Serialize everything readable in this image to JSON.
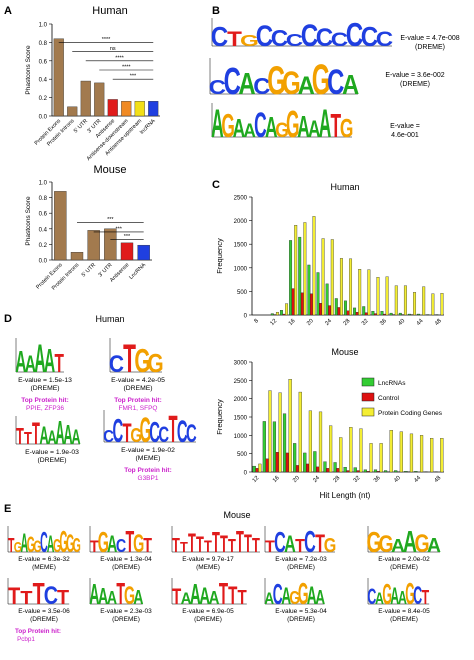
{
  "panel_labels": {
    "a": "A",
    "b": "B",
    "c": "C",
    "d": "D",
    "e": "E"
  },
  "colors": {
    "tan": "#a27a4e",
    "red": "#e01b1b",
    "orange": "#f08a24",
    "yellow": "#f2df17",
    "green": "#3cc43c",
    "blue": "#1f3fe0",
    "magenta": "#cc22cc",
    "lnc": "#33cc33",
    "control": "#dd1111",
    "pc": "#f4ee33"
  },
  "panelA": {
    "ylabel": "Phastcons Score",
    "human": {
      "title": "Human",
      "yticks": [
        "0.0",
        "0.2",
        "0.4",
        "0.6",
        "0.8",
        "1.0"
      ],
      "ylim": [
        0,
        1.0
      ],
      "categories": [
        "Protein Exons",
        "Protein Introns",
        "5' UTR",
        "3' UTR",
        "Antisense",
        "Antisense-downstream",
        "Antisense-upstream",
        "lncRNA"
      ],
      "values": [
        0.84,
        0.1,
        0.38,
        0.36,
        0.18,
        0.16,
        0.16,
        0.16
      ],
      "bar_colors": [
        "#a27a4e",
        "#a27a4e",
        "#a27a4e",
        "#a27a4e",
        "#e01b1b",
        "#f08a24",
        "#f2df17",
        "#1f3fe0"
      ],
      "sig": [
        "****",
        "ns",
        "****",
        "****",
        "***"
      ]
    },
    "mouse": {
      "title": "Mouse",
      "yticks": [
        "0.0",
        "0.2",
        "0.4",
        "0.6",
        "0.8",
        "1.0"
      ],
      "ylim": [
        0,
        1.0
      ],
      "categories": [
        "Protein Exons",
        "Protein Introns",
        "5' UTR",
        "3' UTR",
        "Antisense",
        "LncRNA"
      ],
      "values": [
        0.88,
        0.1,
        0.38,
        0.4,
        0.22,
        0.19
      ],
      "bar_colors": [
        "#a27a4e",
        "#a27a4e",
        "#a27a4e",
        "#a27a4e",
        "#e01b1b",
        "#1f3fe0"
      ],
      "sig": [
        "***",
        "***",
        "***"
      ]
    }
  },
  "panelB": {
    "motifs": [
      {
        "letters": "CTGCCCCCCCCC",
        "evalue": "E-value = 4.7e-008",
        "method": "(DREME)"
      },
      {
        "letters": "CCACGGAGCA",
        "evalue": "E-value = 3.6e-002",
        "method": "(DREME)"
      },
      {
        "letters": "AGAACAGGAAATG",
        "evalue": "E-value =",
        "evalue2": "4.6e-001"
      }
    ]
  },
  "panelC": {
    "ylabel": "Frequency",
    "xlabel": "Hit Length (nt)",
    "legend": [
      "LncRNAs",
      "Control",
      "Protein Coding Genes"
    ],
    "human": {
      "title": "Human",
      "yticks": [
        "0",
        "500",
        "1000",
        "1500",
        "2000",
        "2500"
      ],
      "ylim": [
        0,
        2500
      ],
      "xticks": [
        "8",
        "12",
        "16",
        "20",
        "24",
        "28",
        "32",
        "36",
        "40",
        "44",
        "48"
      ],
      "x": [
        8,
        10,
        12,
        14,
        16,
        18,
        20,
        22,
        24,
        26,
        28,
        30,
        32,
        34,
        36,
        38,
        40,
        42,
        44,
        46,
        48
      ],
      "series": [
        {
          "name": "LncRNAs",
          "values": [
            0,
            0,
            30,
            100,
            1580,
            1650,
            1060,
            900,
            660,
            350,
            300,
            150,
            180,
            80,
            80,
            40,
            40,
            20,
            20,
            10,
            10
          ]
        },
        {
          "name": "Control",
          "values": [
            0,
            0,
            10,
            20,
            560,
            470,
            450,
            250,
            200,
            160,
            90,
            60,
            50,
            30,
            20,
            10,
            10,
            10,
            0,
            0,
            0
          ]
        },
        {
          "name": "Protein Coding Genes",
          "values": [
            0,
            0,
            60,
            240,
            1900,
            1960,
            2090,
            1620,
            1600,
            1200,
            1190,
            970,
            960,
            800,
            810,
            620,
            620,
            480,
            600,
            450,
            460
          ]
        }
      ]
    },
    "mouse": {
      "title": "Mouse",
      "yticks": [
        "0",
        "500",
        "1000",
        "1500",
        "2000",
        "2500",
        "3000"
      ],
      "ylim": [
        0,
        3000
      ],
      "xticks": [
        "12",
        "16",
        "20",
        "24",
        "28",
        "32",
        "36",
        "40",
        "44",
        "48"
      ],
      "x": [
        12,
        14,
        16,
        18,
        20,
        22,
        24,
        26,
        28,
        30,
        32,
        34,
        36,
        38,
        40,
        42,
        44,
        46,
        48
      ],
      "series": [
        {
          "name": "LncRNAs",
          "values": [
            160,
            1380,
            1370,
            1590,
            780,
            520,
            560,
            280,
            260,
            130,
            120,
            60,
            60,
            40,
            40,
            20,
            20,
            10,
            10
          ]
        },
        {
          "name": "Control",
          "values": [
            100,
            360,
            540,
            520,
            180,
            220,
            140,
            100,
            100,
            40,
            40,
            20,
            20,
            10,
            10,
            10,
            0,
            0,
            0
          ]
        },
        {
          "name": "Protein Coding Genes",
          "values": [
            220,
            2220,
            2160,
            2530,
            2180,
            1670,
            1640,
            1260,
            940,
            1220,
            1180,
            780,
            780,
            1140,
            1100,
            1040,
            1000,
            920,
            920
          ]
        }
      ]
    }
  },
  "panelD": {
    "title": "Human",
    "motifs": [
      {
        "letters": "AAAAT",
        "evalue": "E-value = 1.5e-13",
        "method": "(DREME)",
        "hit_title": "Top Protein hit:",
        "hit": "PPIE, ZFP36"
      },
      {
        "letters": "CTGG",
        "evalue": "E-value = 4.2e-05",
        "method": "(DREME)",
        "hit_title": "Top Protein hit:",
        "hit": "FMR1, SFPQ"
      },
      {
        "letters": "TTTAAAAA",
        "evalue": "E-value = 1.9e-03",
        "method": "(DREME)"
      },
      {
        "letters": "CCTGGCCTCC",
        "evalue": "E-value = 1.9e-02",
        "method": "(MEME)",
        "hit_title": "Top Protein hit:",
        "hit": "G3BP1"
      }
    ]
  },
  "panelE": {
    "title": "Mouse",
    "motifs": [
      {
        "letters": "TGAGGCAGGGG",
        "evalue": "E-value = 6.3e-32",
        "method": "(MEME)"
      },
      {
        "letters": "TGACTGT",
        "evalue": "E-value = 1.3e-04",
        "method": "(DREME)"
      },
      {
        "letters": "TTTTTTTTTTT",
        "evalue": "E-value = 9.7e-17",
        "method": "(MEME)"
      },
      {
        "letters": "TCATCTG",
        "evalue": "E-value = 7.2e-03",
        "method": "(DREME)"
      },
      {
        "letters": "GGAAGA",
        "evalue": "E-value = 2.0e-02",
        "method": "(DREME)"
      },
      {
        "letters": "TTTCT",
        "evalue": "E-value = 3.5e-06",
        "method": "(DREME)",
        "hit_title": "Top Protein hit:",
        "hit": "Pcbp1"
      },
      {
        "letters": "AAATGA",
        "evalue": "E-value = 2.3e-03",
        "method": "(DREME)"
      },
      {
        "letters": "TAAAATTT",
        "evalue": "E-value = 6.9e-05",
        "method": "(DREME)"
      },
      {
        "letters": "ACAGGAA",
        "evalue": "E-value = 5.3e-04",
        "method": "(DREME)"
      },
      {
        "letters": "CAGAAGCT",
        "evalue": "E-value = 8.4e-05",
        "method": "(DREME)"
      }
    ]
  },
  "chart_data": [
    {
      "type": "bar",
      "title": "Human",
      "ylabel": "Phastcons Score",
      "ylim": [
        0,
        1.0
      ],
      "categories": [
        "Protein Exons",
        "Protein Introns",
        "5' UTR",
        "3' UTR",
        "Antisense",
        "Antisense-downstream",
        "Antisense-upstream",
        "lncRNA"
      ],
      "values": [
        0.84,
        0.1,
        0.38,
        0.36,
        0.18,
        0.16,
        0.16,
        0.16
      ]
    },
    {
      "type": "bar",
      "title": "Mouse",
      "ylabel": "Phastcons Score",
      "ylim": [
        0,
        1.0
      ],
      "categories": [
        "Protein Exons",
        "Protein Introns",
        "5' UTR",
        "3' UTR",
        "Antisense",
        "LncRNA"
      ],
      "values": [
        0.88,
        0.1,
        0.38,
        0.4,
        0.22,
        0.19
      ]
    },
    {
      "type": "bar",
      "title": "Human",
      "xlabel": "Hit Length (nt)",
      "ylabel": "Frequency",
      "ylim": [
        0,
        2500
      ],
      "x": [
        8,
        10,
        12,
        14,
        16,
        18,
        20,
        22,
        24,
        26,
        28,
        30,
        32,
        34,
        36,
        38,
        40,
        42,
        44,
        46,
        48
      ],
      "series": [
        {
          "name": "LncRNAs",
          "values": [
            0,
            0,
            30,
            100,
            1580,
            1650,
            1060,
            900,
            660,
            350,
            300,
            150,
            180,
            80,
            80,
            40,
            40,
            20,
            20,
            10,
            10
          ]
        },
        {
          "name": "Control",
          "values": [
            0,
            0,
            10,
            20,
            560,
            470,
            450,
            250,
            200,
            160,
            90,
            60,
            50,
            30,
            20,
            10,
            10,
            10,
            0,
            0,
            0
          ]
        },
        {
          "name": "Protein Coding Genes",
          "values": [
            0,
            0,
            60,
            240,
            1900,
            1960,
            2090,
            1620,
            1600,
            1200,
            1190,
            970,
            960,
            800,
            810,
            620,
            620,
            480,
            600,
            450,
            460
          ]
        }
      ]
    },
    {
      "type": "bar",
      "title": "Mouse",
      "xlabel": "Hit Length (nt)",
      "ylabel": "Frequency",
      "ylim": [
        0,
        3000
      ],
      "x": [
        12,
        14,
        16,
        18,
        20,
        22,
        24,
        26,
        28,
        30,
        32,
        34,
        36,
        38,
        40,
        42,
        44,
        46,
        48
      ],
      "series": [
        {
          "name": "LncRNAs",
          "values": [
            160,
            1380,
            1370,
            1590,
            780,
            520,
            560,
            280,
            260,
            130,
            120,
            60,
            60,
            40,
            40,
            20,
            20,
            10,
            10
          ]
        },
        {
          "name": "Control",
          "values": [
            100,
            360,
            540,
            520,
            180,
            220,
            140,
            100,
            100,
            40,
            40,
            20,
            20,
            10,
            10,
            10,
            0,
            0,
            0
          ]
        },
        {
          "name": "Protein Coding Genes",
          "values": [
            220,
            2220,
            2160,
            2530,
            2180,
            1670,
            1640,
            1260,
            940,
            1220,
            1180,
            780,
            780,
            1140,
            1100,
            1040,
            1000,
            920,
            920
          ]
        }
      ]
    }
  ]
}
